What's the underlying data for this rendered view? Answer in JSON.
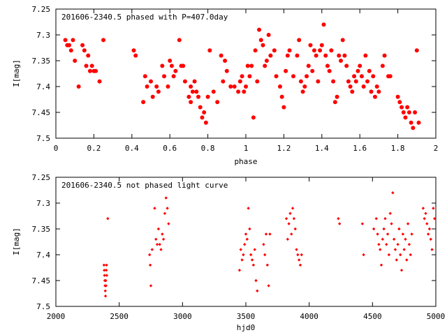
{
  "chart_data": [
    {
      "type": "scatter",
      "title": "201606-2340.5 phased with P=407.0day",
      "xlabel": "phase",
      "ylabel": "I[mag]",
      "xlim": [
        0,
        2
      ],
      "ylim": [
        7.25,
        7.5
      ],
      "y_inverted": true,
      "x_ticks": [
        0,
        0.2,
        0.4,
        0.6,
        0.8,
        1,
        1.2,
        1.4,
        1.6,
        1.8,
        2
      ],
      "y_ticks": [
        7.25,
        7.3,
        7.35,
        7.4,
        7.45,
        7.5
      ],
      "x_tick_labels": [
        "0",
        "0.2",
        "0.4",
        "0.6",
        "0.8",
        "1",
        "1.2",
        "1.4",
        "1.6",
        "1.8",
        "2"
      ],
      "y_tick_labels": [
        "7.25",
        "7.3",
        "7.35",
        "7.4",
        "7.45",
        "7.5"
      ],
      "marker": "filled-circle",
      "color": "#ff0000",
      "grid": false,
      "series": [
        {
          "points": [
            [
              0.05,
              7.31
            ],
            [
              0.06,
              7.32
            ],
            [
              0.07,
              7.32
            ],
            [
              0.08,
              7.33
            ],
            [
              0.09,
              7.31
            ],
            [
              0.1,
              7.35
            ],
            [
              0.12,
              7.4
            ],
            [
              0.14,
              7.32
            ],
            [
              0.15,
              7.33
            ],
            [
              0.16,
              7.36
            ],
            [
              0.17,
              7.34
            ],
            [
              0.18,
              7.37
            ],
            [
              0.19,
              7.36
            ],
            [
              0.2,
              7.37
            ],
            [
              0.21,
              7.37
            ],
            [
              0.23,
              7.39
            ],
            [
              0.25,
              7.31
            ],
            [
              0.41,
              7.33
            ],
            [
              0.42,
              7.34
            ],
            [
              0.46,
              7.43
            ],
            [
              0.47,
              7.38
            ],
            [
              0.48,
              7.4
            ],
            [
              0.5,
              7.39
            ],
            [
              0.51,
              7.42
            ],
            [
              0.53,
              7.4
            ],
            [
              0.54,
              7.41
            ],
            [
              0.56,
              7.36
            ],
            [
              0.57,
              7.38
            ],
            [
              0.59,
              7.4
            ],
            [
              0.6,
              7.35
            ],
            [
              0.61,
              7.36
            ],
            [
              0.62,
              7.38
            ],
            [
              0.63,
              7.37
            ],
            [
              0.65,
              7.31
            ],
            [
              0.66,
              7.36
            ],
            [
              0.67,
              7.36
            ],
            [
              0.68,
              7.39
            ],
            [
              0.7,
              7.42
            ],
            [
              0.71,
              7.4
            ],
            [
              0.71,
              7.43
            ],
            [
              0.72,
              7.41
            ],
            [
              0.73,
              7.39
            ],
            [
              0.74,
              7.41
            ],
            [
              0.75,
              7.42
            ],
            [
              0.76,
              7.44
            ],
            [
              0.77,
              7.46
            ],
            [
              0.78,
              7.45
            ],
            [
              0.79,
              7.47
            ],
            [
              0.8,
              7.42
            ],
            [
              0.81,
              7.33
            ],
            [
              0.83,
              7.41
            ],
            [
              0.85,
              7.43
            ],
            [
              0.87,
              7.34
            ],
            [
              0.88,
              7.39
            ],
            [
              0.89,
              7.35
            ],
            [
              0.9,
              7.37
            ],
            [
              0.92,
              7.4
            ],
            [
              0.94,
              7.4
            ],
            [
              0.96,
              7.41
            ],
            [
              0.97,
              7.39
            ],
            [
              0.98,
              7.38
            ],
            [
              0.99,
              7.41
            ],
            [
              1.0,
              7.4
            ],
            [
              1.01,
              7.36
            ],
            [
              1.02,
              7.38
            ],
            [
              1.03,
              7.36
            ],
            [
              1.04,
              7.46
            ],
            [
              1.05,
              7.33
            ],
            [
              1.06,
              7.39
            ],
            [
              1.07,
              7.29
            ],
            [
              1.08,
              7.31
            ],
            [
              1.09,
              7.32
            ],
            [
              1.1,
              7.36
            ],
            [
              1.11,
              7.35
            ],
            [
              1.12,
              7.3
            ],
            [
              1.13,
              7.34
            ],
            [
              1.15,
              7.33
            ],
            [
              1.16,
              7.38
            ],
            [
              1.18,
              7.4
            ],
            [
              1.19,
              7.42
            ],
            [
              1.2,
              7.44
            ],
            [
              1.21,
              7.37
            ],
            [
              1.22,
              7.34
            ],
            [
              1.23,
              7.33
            ],
            [
              1.25,
              7.38
            ],
            [
              1.27,
              7.34
            ],
            [
              1.28,
              7.31
            ],
            [
              1.29,
              7.39
            ],
            [
              1.3,
              7.41
            ],
            [
              1.31,
              7.4
            ],
            [
              1.32,
              7.38
            ],
            [
              1.33,
              7.36
            ],
            [
              1.34,
              7.32
            ],
            [
              1.35,
              7.37
            ],
            [
              1.36,
              7.33
            ],
            [
              1.37,
              7.34
            ],
            [
              1.38,
              7.39
            ],
            [
              1.39,
              7.33
            ],
            [
              1.4,
              7.32
            ],
            [
              1.41,
              7.28
            ],
            [
              1.42,
              7.34
            ],
            [
              1.43,
              7.36
            ],
            [
              1.44,
              7.37
            ],
            [
              1.45,
              7.33
            ],
            [
              1.46,
              7.39
            ],
            [
              1.47,
              7.43
            ],
            [
              1.48,
              7.42
            ],
            [
              1.49,
              7.34
            ],
            [
              1.5,
              7.35
            ],
            [
              1.51,
              7.31
            ],
            [
              1.52,
              7.34
            ],
            [
              1.53,
              7.36
            ],
            [
              1.54,
              7.39
            ],
            [
              1.55,
              7.4
            ],
            [
              1.56,
              7.41
            ],
            [
              1.57,
              7.38
            ],
            [
              1.58,
              7.39
            ],
            [
              1.59,
              7.37
            ],
            [
              1.6,
              7.36
            ],
            [
              1.61,
              7.38
            ],
            [
              1.62,
              7.4
            ],
            [
              1.63,
              7.34
            ],
            [
              1.64,
              7.39
            ],
            [
              1.65,
              7.37
            ],
            [
              1.66,
              7.41
            ],
            [
              1.67,
              7.38
            ],
            [
              1.68,
              7.42
            ],
            [
              1.69,
              7.4
            ],
            [
              1.7,
              7.41
            ],
            [
              1.72,
              7.36
            ],
            [
              1.73,
              7.34
            ],
            [
              1.75,
              7.38
            ],
            [
              1.76,
              7.38
            ],
            [
              1.8,
              7.42
            ],
            [
              1.81,
              7.43
            ],
            [
              1.82,
              7.44
            ],
            [
              1.83,
              7.45
            ],
            [
              1.84,
              7.46
            ],
            [
              1.85,
              7.44
            ],
            [
              1.86,
              7.45
            ],
            [
              1.87,
              7.47
            ],
            [
              1.88,
              7.48
            ],
            [
              1.89,
              7.45
            ],
            [
              1.9,
              7.33
            ],
            [
              1.91,
              7.47
            ]
          ]
        }
      ]
    },
    {
      "type": "scatter",
      "title": "201606-2340.5 not phased light curve",
      "xlabel": "hjd0",
      "ylabel": "I[mag]",
      "xlim": [
        2000,
        5000
      ],
      "ylim": [
        7.25,
        7.5
      ],
      "y_inverted": true,
      "x_ticks": [
        2000,
        2500,
        3000,
        3500,
        4000,
        4500,
        5000
      ],
      "y_ticks": [
        7.25,
        7.3,
        7.35,
        7.4,
        7.45,
        7.5
      ],
      "x_tick_labels": [
        "2000",
        "2500",
        "3000",
        "3500",
        "4000",
        "4500",
        "5000"
      ],
      "y_tick_labels": [
        "7.25",
        "7.3",
        "7.35",
        "7.4",
        "7.45",
        "7.5"
      ],
      "marker": "small-diamond",
      "color": "#ff0000",
      "grid": false,
      "series": [
        {
          "points": [
            [
              2380,
              7.42
            ],
            [
              2382,
              7.43
            ],
            [
              2384,
              7.44
            ],
            [
              2386,
              7.45
            ],
            [
              2388,
              7.46
            ],
            [
              2390,
              7.47
            ],
            [
              2392,
              7.48
            ],
            [
              2394,
              7.45
            ],
            [
              2396,
              7.46
            ],
            [
              2398,
              7.43
            ],
            [
              2400,
              7.42
            ],
            [
              2402,
              7.44
            ],
            [
              2410,
              7.33
            ],
            [
              2740,
              7.4
            ],
            [
              2745,
              7.42
            ],
            [
              2750,
              7.46
            ],
            [
              2760,
              7.39
            ],
            [
              2780,
              7.31
            ],
            [
              2790,
              7.37
            ],
            [
              2800,
              7.38
            ],
            [
              2810,
              7.35
            ],
            [
              2820,
              7.38
            ],
            [
              2830,
              7.39
            ],
            [
              2840,
              7.36
            ],
            [
              2850,
              7.37
            ],
            [
              2860,
              7.32
            ],
            [
              2870,
              7.29
            ],
            [
              2880,
              7.31
            ],
            [
              2890,
              7.34
            ],
            [
              3450,
              7.43
            ],
            [
              3460,
              7.39
            ],
            [
              3470,
              7.41
            ],
            [
              3480,
              7.4
            ],
            [
              3490,
              7.38
            ],
            [
              3500,
              7.36
            ],
            [
              3510,
              7.37
            ],
            [
              3520,
              7.31
            ],
            [
              3530,
              7.35
            ],
            [
              3540,
              7.4
            ],
            [
              3550,
              7.41
            ],
            [
              3560,
              7.42
            ],
            [
              3570,
              7.39
            ],
            [
              3580,
              7.45
            ],
            [
              3590,
              7.47
            ],
            [
              3640,
              7.38
            ],
            [
              3650,
              7.4
            ],
            [
              3660,
              7.36
            ],
            [
              3670,
              7.42
            ],
            [
              3680,
              7.46
            ],
            [
              3690,
              7.36
            ],
            [
              3820,
              7.33
            ],
            [
              3830,
              7.37
            ],
            [
              3840,
              7.34
            ],
            [
              3850,
              7.32
            ],
            [
              3860,
              7.36
            ],
            [
              3870,
              7.31
            ],
            [
              3880,
              7.33
            ],
            [
              3890,
              7.35
            ],
            [
              3900,
              7.39
            ],
            [
              3910,
              7.4
            ],
            [
              3920,
              7.41
            ],
            [
              3930,
              7.42
            ],
            [
              3940,
              7.4
            ],
            [
              4230,
              7.33
            ],
            [
              4240,
              7.34
            ],
            [
              4420,
              7.34
            ],
            [
              4430,
              7.4
            ],
            [
              4510,
              7.35
            ],
            [
              4530,
              7.33
            ],
            [
              4540,
              7.36
            ],
            [
              4550,
              7.38
            ],
            [
              4560,
              7.39
            ],
            [
              4570,
              7.42
            ],
            [
              4580,
              7.37
            ],
            [
              4590,
              7.35
            ],
            [
              4600,
              7.33
            ],
            [
              4610,
              7.38
            ],
            [
              4620,
              7.36
            ],
            [
              4630,
              7.4
            ],
            [
              4640,
              7.32
            ],
            [
              4650,
              7.34
            ],
            [
              4660,
              7.28
            ],
            [
              4670,
              7.37
            ],
            [
              4680,
              7.39
            ],
            [
              4690,
              7.41
            ],
            [
              4700,
              7.38
            ],
            [
              4710,
              7.35
            ],
            [
              4720,
              7.4
            ],
            [
              4730,
              7.43
            ],
            [
              4740,
              7.36
            ],
            [
              4750,
              7.39
            ],
            [
              4760,
              7.37
            ],
            [
              4770,
              7.41
            ],
            [
              4780,
              7.34
            ],
            [
              4790,
              7.38
            ],
            [
              4800,
              7.4
            ],
            [
              4810,
              7.36
            ],
            [
              4900,
              7.31
            ],
            [
              4910,
              7.33
            ],
            [
              4920,
              7.32
            ],
            [
              4930,
              7.34
            ],
            [
              4940,
              7.36
            ],
            [
              4950,
              7.35
            ],
            [
              4960,
              7.37
            ],
            [
              4970,
              7.39
            ],
            [
              4980,
              7.31
            ],
            [
              4990,
              7.33
            ]
          ]
        }
      ]
    }
  ]
}
